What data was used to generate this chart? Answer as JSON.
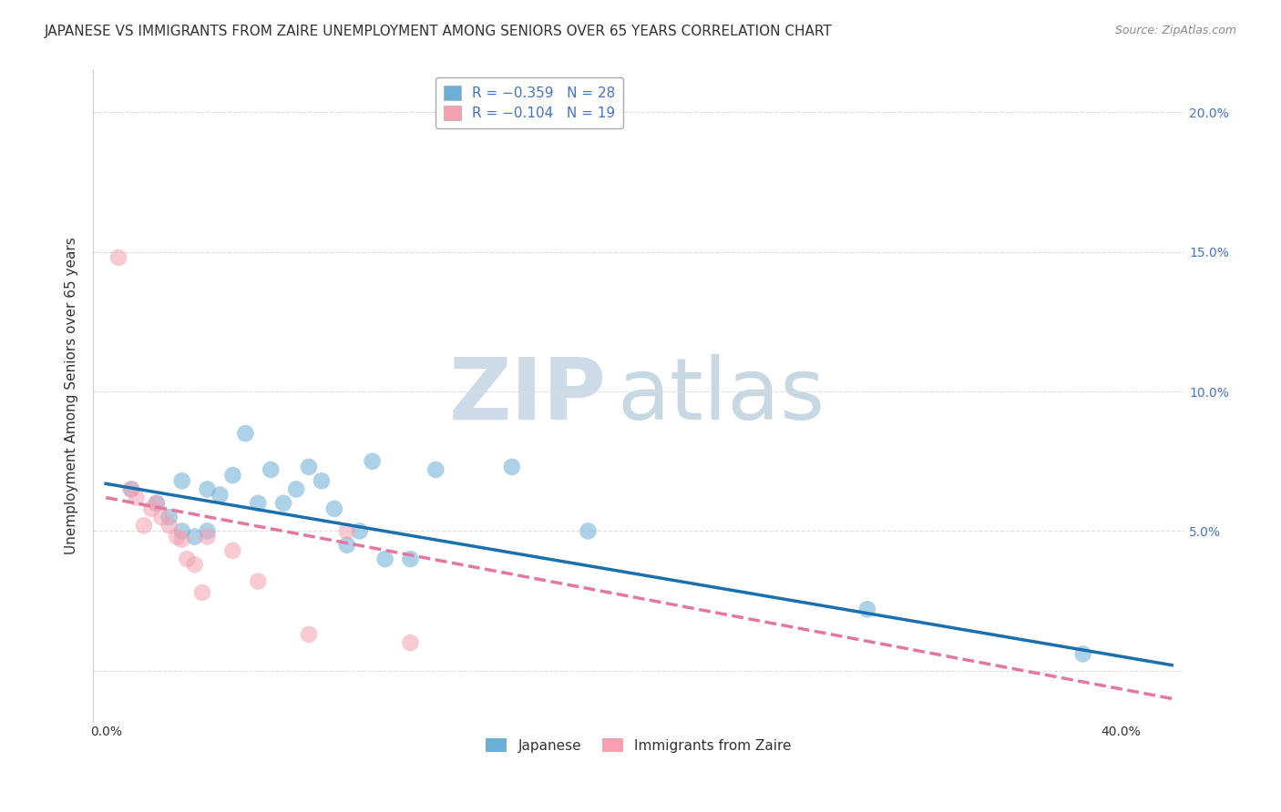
{
  "title": "JAPANESE VS IMMIGRANTS FROM ZAIRE UNEMPLOYMENT AMONG SENIORS OVER 65 YEARS CORRELATION CHART",
  "source": "Source: ZipAtlas.com",
  "ylabel": "Unemployment Among Seniors over 65 years",
  "legend_label_bottom": [
    "Japanese",
    "Immigrants from Zaire"
  ],
  "series": [
    {
      "label": "Japanese",
      "R": -0.359,
      "N": 28,
      "color": "#6baed6",
      "alpha": 0.55,
      "x": [
        0.01,
        0.02,
        0.025,
        0.03,
        0.03,
        0.035,
        0.04,
        0.04,
        0.045,
        0.05,
        0.055,
        0.06,
        0.065,
        0.07,
        0.075,
        0.08,
        0.085,
        0.09,
        0.095,
        0.1,
        0.105,
        0.11,
        0.12,
        0.13,
        0.16,
        0.19,
        0.3,
        0.385
      ],
      "y": [
        0.065,
        0.06,
        0.055,
        0.068,
        0.05,
        0.048,
        0.065,
        0.05,
        0.063,
        0.07,
        0.085,
        0.06,
        0.072,
        0.06,
        0.065,
        0.073,
        0.068,
        0.058,
        0.045,
        0.05,
        0.075,
        0.04,
        0.04,
        0.072,
        0.073,
        0.05,
        0.022,
        0.006
      ],
      "line_style": "solid",
      "line_color": "#1a6faf",
      "line_x": [
        0.0,
        0.42
      ],
      "line_y": [
        0.067,
        0.002
      ]
    },
    {
      "label": "Immigrants from Zaire",
      "R": -0.104,
      "N": 19,
      "color": "#f4a0b0",
      "alpha": 0.55,
      "x": [
        0.005,
        0.01,
        0.012,
        0.015,
        0.018,
        0.02,
        0.022,
        0.025,
        0.028,
        0.03,
        0.032,
        0.035,
        0.038,
        0.04,
        0.05,
        0.06,
        0.08,
        0.095,
        0.12
      ],
      "y": [
        0.148,
        0.065,
        0.062,
        0.052,
        0.058,
        0.06,
        0.055,
        0.052,
        0.048,
        0.047,
        0.04,
        0.038,
        0.028,
        0.048,
        0.043,
        0.032,
        0.013,
        0.05,
        0.01
      ],
      "line_style": "dashed",
      "line_color": "#e377a2",
      "line_x": [
        0.0,
        0.42
      ],
      "line_y": [
        0.062,
        -0.01
      ]
    }
  ],
  "xlim": [
    -0.005,
    0.425
  ],
  "ylim": [
    -0.018,
    0.215
  ],
  "xticks": [
    0.0,
    0.05,
    0.1,
    0.15,
    0.2,
    0.25,
    0.3,
    0.35,
    0.4
  ],
  "yticks": [
    0.0,
    0.05,
    0.1,
    0.15,
    0.2
  ],
  "watermark_zip": "ZIP",
  "watermark_atlas": "atlas",
  "background_color": "#ffffff",
  "grid_color": "#dddddd",
  "title_fontsize": 11,
  "axis_label_fontsize": 11,
  "tick_fontsize": 10,
  "right_tick_color": "#4472c4"
}
